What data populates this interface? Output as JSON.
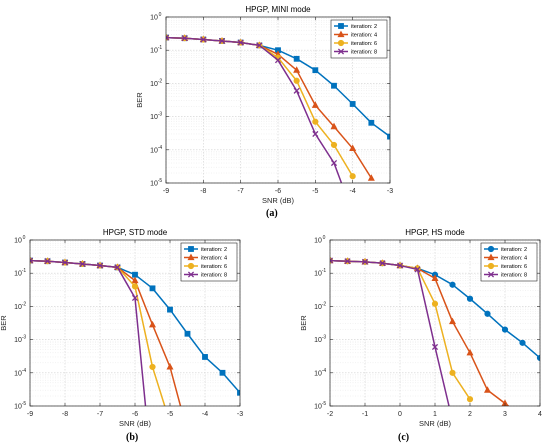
{
  "captions": [
    "(a)",
    "(b)",
    "(c)"
  ],
  "series_colors": [
    "#0072BD",
    "#D95319",
    "#EDB120",
    "#7E2F8E"
  ],
  "chart_data": [
    {
      "type": "line",
      "title": "HPGP, MINI mode",
      "xlabel": "SNR (dB)",
      "ylabel": "BER",
      "y_scale": "log",
      "xlim": [
        -9,
        -3
      ],
      "ylim": [
        1e-05,
        1
      ],
      "xticks": [
        -9,
        -8,
        -7,
        -6,
        -5,
        -4,
        -3
      ],
      "xtick_labels": [
        "-9",
        "-8",
        "-7",
        "-6",
        "-5",
        "-4",
        "-3"
      ],
      "yticks": [
        1e-05,
        0.0001,
        0.001,
        0.01,
        0.1,
        1
      ],
      "ytick_labels": [
        [
          "10",
          "-5"
        ],
        [
          "10",
          "-4"
        ],
        [
          "10",
          "-3"
        ],
        [
          "10",
          "-2"
        ],
        [
          "10",
          "-1"
        ],
        [
          "10",
          "0"
        ]
      ],
      "grid": true,
      "legend_position": "top-right",
      "series": [
        {
          "name": "iteration: 2",
          "marker": "square",
          "x": [
            -9,
            -8.5,
            -8,
            -7.5,
            -7,
            -6.5,
            -6,
            -5.5,
            -5,
            -4.5,
            -4,
            -3.5,
            -3
          ],
          "y": [
            0.24,
            0.23,
            0.21,
            0.19,
            0.17,
            0.14,
            0.1,
            0.055,
            0.025,
            0.0085,
            0.0024,
            0.00065,
            0.00025
          ]
        },
        {
          "name": "iteration: 4",
          "marker": "triangle",
          "x": [
            -9,
            -8.5,
            -8,
            -7.5,
            -7,
            -6.5,
            -6,
            -5.5,
            -5,
            -4.5,
            -4,
            -3.5
          ],
          "y": [
            0.24,
            0.23,
            0.21,
            0.19,
            0.17,
            0.14,
            0.075,
            0.025,
            0.0022,
            0.0005,
            0.00011,
            1.4e-05
          ]
        },
        {
          "name": "iteration: 6",
          "marker": "circle",
          "x": [
            -9,
            -8.5,
            -8,
            -7.5,
            -7,
            -6.5,
            -6,
            -5.5,
            -5,
            -4.5,
            -4
          ],
          "y": [
            0.24,
            0.23,
            0.21,
            0.19,
            0.17,
            0.14,
            0.06,
            0.012,
            0.0007,
            0.00014,
            1.6e-05
          ]
        },
        {
          "name": "iteration: 8",
          "marker": "x",
          "x": [
            -9,
            -8.5,
            -8,
            -7.5,
            -7,
            -6.5,
            -6,
            -5.5,
            -5,
            -4.5,
            -4.3
          ],
          "y": [
            0.24,
            0.23,
            0.21,
            0.19,
            0.17,
            0.14,
            0.05,
            0.006,
            0.0003,
            4e-05,
            1e-05
          ]
        }
      ]
    },
    {
      "type": "line",
      "title": "HPGP, STD mode",
      "xlabel": "SNR (dB)",
      "ylabel": "BER",
      "y_scale": "log",
      "xlim": [
        -9,
        -3
      ],
      "ylim": [
        1e-05,
        1
      ],
      "xticks": [
        -9,
        -8,
        -7,
        -6,
        -5,
        -4,
        -3
      ],
      "xtick_labels": [
        "-9",
        "-8",
        "-7",
        "-6",
        "-5",
        "-4",
        "-3"
      ],
      "yticks": [
        1e-05,
        0.0001,
        0.001,
        0.01,
        0.1,
        1
      ],
      "ytick_labels": [
        [
          "10",
          "-5"
        ],
        [
          "10",
          "-4"
        ],
        [
          "10",
          "-3"
        ],
        [
          "10",
          "-2"
        ],
        [
          "10",
          "-1"
        ],
        [
          "10",
          "0"
        ]
      ],
      "grid": true,
      "legend_position": "top-right",
      "series": [
        {
          "name": "iteration: 2",
          "marker": "square",
          "x": [
            -9,
            -8.5,
            -8,
            -7.5,
            -7,
            -6.5,
            -6,
            -5.5,
            -5,
            -4.5,
            -4,
            -3.5,
            -3
          ],
          "y": [
            0.24,
            0.23,
            0.21,
            0.19,
            0.17,
            0.15,
            0.09,
            0.035,
            0.008,
            0.0015,
            0.0003,
            0.0001,
            2.5e-05
          ]
        },
        {
          "name": "iteration: 4",
          "marker": "triangle",
          "x": [
            -9,
            -8.5,
            -8,
            -7.5,
            -7,
            -6.5,
            -6,
            -5.5,
            -5,
            -4.7
          ],
          "y": [
            0.24,
            0.23,
            0.21,
            0.19,
            0.17,
            0.15,
            0.06,
            0.0028,
            0.00015,
            1e-05
          ]
        },
        {
          "name": "iteration: 6",
          "marker": "circle",
          "x": [
            -9,
            -8.5,
            -8,
            -7.5,
            -7,
            -6.5,
            -6,
            -5.5,
            -5.15
          ],
          "y": [
            0.24,
            0.23,
            0.21,
            0.19,
            0.17,
            0.15,
            0.04,
            0.00015,
            1e-05
          ]
        },
        {
          "name": "iteration: 8",
          "marker": "x",
          "x": [
            -9,
            -8.5,
            -8,
            -7.5,
            -7,
            -6.5,
            -6,
            -5.7
          ],
          "y": [
            0.24,
            0.23,
            0.21,
            0.19,
            0.17,
            0.15,
            0.018,
            1e-05
          ]
        }
      ]
    },
    {
      "type": "line",
      "title": "HPGP, HS mode",
      "xlabel": "SNR (dB)",
      "ylabel": "BER",
      "y_scale": "log",
      "xlim": [
        -2,
        4
      ],
      "ylim": [
        1e-05,
        1
      ],
      "xticks": [
        -2,
        -1,
        0,
        1,
        2,
        3,
        4
      ],
      "xtick_labels": [
        "-2",
        "-1",
        "0",
        "1",
        "2",
        "3",
        "4"
      ],
      "yticks": [
        1e-05,
        0.0001,
        0.001,
        0.01,
        0.1,
        1
      ],
      "ytick_labels": [
        [
          "10",
          "-5"
        ],
        [
          "10",
          "-4"
        ],
        [
          "10",
          "-3"
        ],
        [
          "10",
          "-2"
        ],
        [
          "10",
          "-1"
        ],
        [
          "10",
          "0"
        ]
      ],
      "grid": true,
      "legend_position": "top-right",
      "series": [
        {
          "name": "iteration: 2",
          "marker": "circle",
          "x": [
            -2,
            -1.5,
            -1,
            -0.5,
            0,
            0.5,
            1,
            1.5,
            2,
            2.5,
            3,
            3.5,
            4
          ],
          "y": [
            0.24,
            0.23,
            0.22,
            0.2,
            0.17,
            0.14,
            0.09,
            0.045,
            0.017,
            0.006,
            0.002,
            0.0008,
            0.00028
          ]
        },
        {
          "name": "iteration: 4",
          "marker": "triangle",
          "x": [
            -2,
            -1.5,
            -1,
            -0.5,
            0,
            0.5,
            1,
            1.5,
            2,
            2.5,
            3,
            3.1
          ],
          "y": [
            0.24,
            0.23,
            0.22,
            0.2,
            0.17,
            0.14,
            0.07,
            0.0035,
            0.0004,
            3e-05,
            1.2e-05,
            1e-05
          ]
        },
        {
          "name": "iteration: 6",
          "marker": "circle",
          "x": [
            -2,
            -1.5,
            -1,
            -0.5,
            0,
            0.5,
            1,
            1.5,
            2
          ],
          "y": [
            0.24,
            0.23,
            0.22,
            0.2,
            0.17,
            0.14,
            0.012,
            0.0001,
            1.6e-05
          ]
        },
        {
          "name": "iteration: 8",
          "marker": "x",
          "x": [
            -2,
            -1.5,
            -1,
            -0.5,
            0,
            0.5,
            1,
            1.4
          ],
          "y": [
            0.24,
            0.23,
            0.22,
            0.2,
            0.17,
            0.13,
            0.0006,
            1e-05
          ]
        }
      ]
    }
  ]
}
